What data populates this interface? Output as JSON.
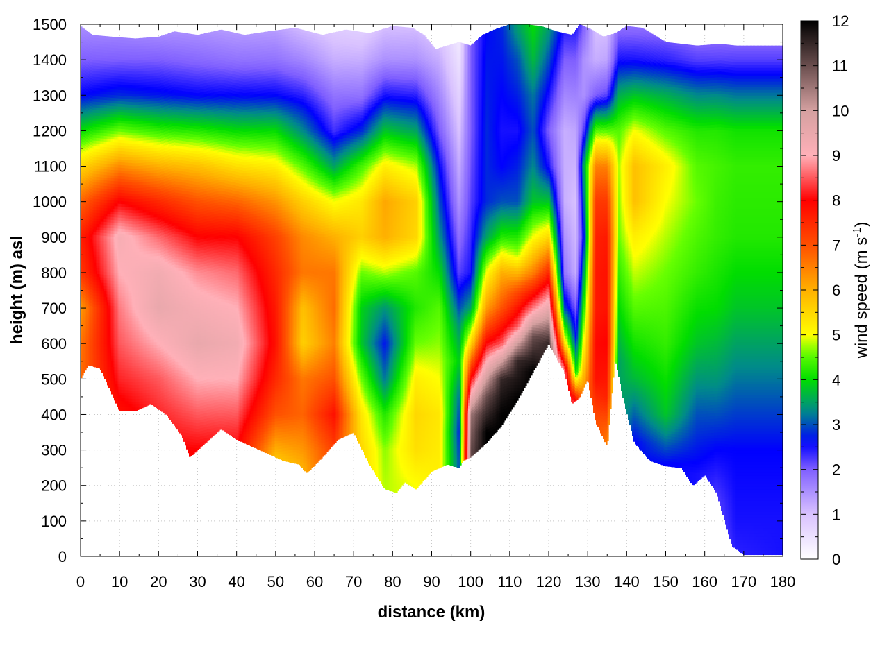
{
  "chart_data": {
    "type": "heatmap",
    "title": "",
    "xlabel": "distance (km)",
    "ylabel": "height (m) asl",
    "xlim": [
      0,
      180
    ],
    "ylim": [
      0,
      1500
    ],
    "x_ticks": [
      0,
      10,
      20,
      30,
      40,
      50,
      60,
      70,
      80,
      90,
      100,
      110,
      120,
      130,
      140,
      150,
      160,
      170,
      180
    ],
    "y_ticks": [
      0,
      100,
      200,
      300,
      400,
      500,
      600,
      700,
      800,
      900,
      1000,
      1100,
      1200,
      1300,
      1400,
      1500
    ],
    "grid": true,
    "colorbar": {
      "label_main": "wind speed (m s",
      "label_sup": "-1",
      "label_close": ")",
      "range": [
        0,
        12
      ],
      "ticks": [
        0,
        1,
        2,
        3,
        4,
        5,
        6,
        7,
        8,
        9,
        10,
        11,
        12
      ],
      "colormap": [
        [
          0,
          "#ffffff"
        ],
        [
          1,
          "#d9c2ff"
        ],
        [
          2,
          "#7f5fff"
        ],
        [
          2.6,
          "#0000ff"
        ],
        [
          3.3,
          "#008a8a"
        ],
        [
          4,
          "#00dd00"
        ],
        [
          4.6,
          "#66ff00"
        ],
        [
          5,
          "#ffff00"
        ],
        [
          6,
          "#ffb000"
        ],
        [
          7,
          "#ff5000"
        ],
        [
          8,
          "#ff0000"
        ],
        [
          9,
          "#ffb0b8"
        ],
        [
          10,
          "#d4a0a0"
        ],
        [
          11,
          "#6a4e4e"
        ],
        [
          12,
          "#000000"
        ]
      ]
    },
    "terrain_height": {
      "x": [
        0,
        2,
        5,
        10,
        14,
        18,
        22,
        26,
        28,
        32,
        36,
        40,
        44,
        48,
        52,
        56,
        58,
        62,
        66,
        70,
        74,
        78,
        81,
        83,
        86,
        90,
        94,
        97,
        98,
        100,
        104,
        108,
        112,
        116,
        120,
        124,
        126,
        128,
        130,
        132,
        135,
        137,
        139,
        142,
        146,
        150,
        154,
        157,
        160,
        163,
        167,
        170,
        175,
        180
      ],
      "y": [
        500,
        540,
        530,
        410,
        410,
        430,
        400,
        340,
        280,
        320,
        360,
        330,
        310,
        290,
        270,
        260,
        235,
        280,
        330,
        350,
        260,
        190,
        180,
        210,
        190,
        240,
        260,
        250,
        270,
        280,
        320,
        370,
        440,
        520,
        600,
        520,
        430,
        450,
        500,
        380,
        310,
        560,
        450,
        320,
        270,
        255,
        250,
        200,
        230,
        180,
        30,
        5,
        5,
        5
      ]
    },
    "top_height": {
      "x": [
        0,
        3,
        8,
        14,
        20,
        24,
        30,
        36,
        42,
        48,
        55,
        62,
        68,
        74,
        80,
        85,
        88,
        91,
        94,
        97,
        100,
        103,
        106,
        110,
        114,
        118,
        122,
        126,
        128,
        131,
        134,
        137,
        140,
        144,
        150,
        158,
        164,
        168,
        173,
        180
      ],
      "y": [
        1495,
        1470,
        1465,
        1460,
        1465,
        1480,
        1470,
        1485,
        1470,
        1480,
        1490,
        1470,
        1485,
        1475,
        1495,
        1490,
        1470,
        1430,
        1440,
        1450,
        1440,
        1470,
        1485,
        1500,
        1500,
        1495,
        1480,
        1470,
        1500,
        1485,
        1465,
        1475,
        1495,
        1490,
        1450,
        1440,
        1445,
        1440,
        1440,
        1440
      ]
    },
    "wind_profiles": [
      {
        "x": 0,
        "z": [
          0,
          200,
          400,
          600,
          700,
          800,
          900,
          1000,
          1100,
          1200,
          1300,
          1400,
          1500
        ],
        "v": [
          6,
          6.5,
          6.8,
          6.6,
          6.2,
          7.3,
          7.6,
          6.8,
          5.5,
          4,
          2.6,
          2,
          1.5
        ]
      },
      {
        "x": 10,
        "z": [
          0,
          300,
          400,
          500,
          600,
          700,
          800,
          900,
          1000,
          1100,
          1200,
          1300,
          1400,
          1500
        ],
        "v": [
          7.5,
          7.5,
          7.8,
          8.2,
          8.5,
          8.7,
          9,
          9.2,
          8,
          6.4,
          4.6,
          2.8,
          2,
          1.5
        ]
      },
      {
        "x": 20,
        "z": [
          0,
          300,
          400,
          500,
          600,
          700,
          800,
          900,
          1000,
          1100,
          1200,
          1300,
          1400,
          1500
        ],
        "v": [
          8,
          8,
          8.2,
          8.5,
          9,
          9.5,
          9.3,
          8.6,
          7.5,
          6,
          4.3,
          2.7,
          2,
          1.4
        ]
      },
      {
        "x": 30,
        "z": [
          0,
          300,
          400,
          500,
          600,
          700,
          800,
          900,
          1000,
          1100,
          1200,
          1300,
          1400,
          1500
        ],
        "v": [
          8,
          8,
          8.5,
          9,
          9.5,
          9.2,
          8.8,
          8,
          7,
          5.8,
          4.2,
          2.6,
          1.9,
          1.4
        ]
      },
      {
        "x": 40,
        "z": [
          0,
          300,
          400,
          500,
          600,
          700,
          800,
          900,
          1000,
          1100,
          1200,
          1300,
          1400,
          1500
        ],
        "v": [
          8,
          8,
          8.5,
          9,
          9.3,
          9,
          8.6,
          8,
          6.8,
          5.4,
          4,
          2.6,
          1.8,
          1.3
        ]
      },
      {
        "x": 50,
        "z": [
          0,
          250,
          300,
          400,
          500,
          600,
          700,
          800,
          900,
          1000,
          1100,
          1200,
          1300,
          1400,
          1500
        ],
        "v": [
          5.5,
          5.5,
          6,
          7,
          7.5,
          7.8,
          7.7,
          7.5,
          7.2,
          6.3,
          5.2,
          4,
          2.6,
          1.8,
          1.3
        ]
      },
      {
        "x": 57,
        "z": [
          0,
          250,
          400,
          500,
          600,
          700,
          800,
          900,
          1000,
          1100,
          1200,
          1300,
          1400,
          1500
        ],
        "v": [
          5.8,
          6,
          6.8,
          6.6,
          5.6,
          5.8,
          6.6,
          6.4,
          5.6,
          4.5,
          3.3,
          2.4,
          1.6,
          1
        ]
      },
      {
        "x": 65,
        "z": [
          0,
          300,
          400,
          500,
          600,
          700,
          800,
          900,
          1000,
          1100,
          1200,
          1300,
          1400,
          1500
        ],
        "v": [
          7.2,
          7.2,
          7.8,
          7,
          6.5,
          6.7,
          6.6,
          6,
          5,
          3.5,
          2.3,
          1.8,
          1.2,
          0.8
        ]
      },
      {
        "x": 72,
        "z": [
          0,
          300,
          400,
          500,
          600,
          700,
          800,
          900,
          1000,
          1100,
          1200,
          1300,
          1400,
          1500
        ],
        "v": [
          5.5,
          5.5,
          5.3,
          4.6,
          3.8,
          3.9,
          4.6,
          5.6,
          5.3,
          4.4,
          2.8,
          1.8,
          1.2,
          0.7
        ]
      },
      {
        "x": 78,
        "z": [
          0,
          200,
          300,
          400,
          500,
          600,
          700,
          800,
          900,
          1000,
          1100,
          1200,
          1300,
          1400,
          1500
        ],
        "v": [
          4.8,
          4.8,
          4.7,
          4.2,
          3.2,
          2.7,
          3.4,
          4.8,
          6,
          6.1,
          5.2,
          3.8,
          2.5,
          1.5,
          1
        ]
      },
      {
        "x": 86,
        "z": [
          0,
          200,
          300,
          400,
          500,
          600,
          700,
          800,
          900,
          1000,
          1100,
          1200,
          1300,
          1400,
          1500
        ],
        "v": [
          5,
          5,
          5.4,
          5.5,
          5.2,
          4.6,
          4.2,
          4.5,
          5.5,
          5.6,
          4.8,
          3.5,
          2.4,
          1.5,
          1
        ]
      },
      {
        "x": 92,
        "z": [
          0,
          250,
          400,
          500,
          600,
          700,
          800,
          900,
          1000,
          1100,
          1200,
          1300,
          1400,
          1500
        ],
        "v": [
          5.2,
          5.2,
          5.3,
          5,
          4.7,
          4.5,
          4,
          3.4,
          3,
          2.6,
          2,
          1.6,
          1.2,
          0.8
        ]
      },
      {
        "x": 97,
        "z": [
          0,
          270,
          350,
          450,
          550,
          650,
          800,
          1000,
          1200,
          1400,
          1500
        ],
        "v": [
          3,
          3,
          2.8,
          3.2,
          3.9,
          3.4,
          2.2,
          1.5,
          1,
          0.5,
          0.3
        ]
      },
      {
        "x": 100,
        "z": [
          0,
          300,
          400,
          500,
          600,
          700,
          800,
          1000,
          1200,
          1400,
          1500
        ],
        "v": [
          11,
          11,
          10.5,
          8,
          5.5,
          3.5,
          2.5,
          2.2,
          2,
          2,
          2
        ]
      },
      {
        "x": 104,
        "z": [
          0,
          350,
          450,
          550,
          650,
          700,
          800,
          900,
          1000,
          1200,
          1400,
          1500
        ],
        "v": [
          12,
          12,
          11,
          9,
          7,
          6.2,
          5,
          3.5,
          2.8,
          2.8,
          2.7,
          2.6
        ]
      },
      {
        "x": 108,
        "z": [
          0,
          400,
          500,
          600,
          700,
          800,
          900,
          1000,
          1100,
          1200,
          1300,
          1400,
          1500
        ],
        "v": [
          12,
          12,
          11.5,
          8.5,
          7,
          6,
          4.2,
          3,
          2.6,
          2.5,
          2.6,
          2.7,
          2.8
        ]
      },
      {
        "x": 112,
        "z": [
          0,
          440,
          550,
          650,
          750,
          850,
          1000,
          1200,
          1400,
          1500
        ],
        "v": [
          12,
          12,
          11.5,
          8.5,
          7,
          4.8,
          3,
          2.5,
          3,
          3.5
        ]
      },
      {
        "x": 116,
        "z": [
          0,
          520,
          620,
          700,
          800,
          900,
          1000,
          1100,
          1200,
          1300,
          1400,
          1500
        ],
        "v": [
          12,
          12,
          11,
          8.7,
          6.5,
          5,
          3.8,
          3.3,
          3,
          3.2,
          3.7,
          4
        ]
      },
      {
        "x": 120,
        "z": [
          0,
          600,
          700,
          800,
          900,
          1000,
          1100,
          1200,
          1400,
          1500
        ],
        "v": [
          11.5,
          11.5,
          9.5,
          7.5,
          5.5,
          3.8,
          2.5,
          2,
          3,
          3.5
        ]
      },
      {
        "x": 124,
        "z": [
          0,
          520,
          600,
          700,
          800,
          900,
          1000,
          1200,
          1400,
          1500
        ],
        "v": [
          9,
          9,
          5.5,
          3,
          1.8,
          1.5,
          1.2,
          1.2,
          2,
          2.5
        ]
      },
      {
        "x": 127,
        "z": [
          0,
          440,
          520,
          620,
          800,
          1000,
          1200,
          1400,
          1500
        ],
        "v": [
          7.5,
          8,
          4,
          2.6,
          1.2,
          1,
          1.3,
          2,
          2.5
        ]
      },
      {
        "x": 129,
        "z": [
          0,
          450,
          550,
          700,
          900,
          1100,
          1200,
          1300,
          1400,
          1500
        ],
        "v": [
          6.5,
          6.5,
          5.5,
          4.2,
          2.6,
          3.5,
          2.2,
          1.5,
          1.5,
          2
        ]
      },
      {
        "x": 132,
        "z": [
          0,
          380,
          500,
          600,
          700,
          800,
          900,
          1000,
          1100,
          1200,
          1300,
          1400,
          1500
        ],
        "v": [
          7,
          7,
          7.8,
          7.9,
          7.7,
          7.7,
          7.6,
          7.3,
          6.5,
          4.5,
          2,
          1.2,
          1
        ]
      },
      {
        "x": 135,
        "z": [
          0,
          320,
          450,
          600,
          700,
          800,
          900,
          1000,
          1100,
          1200,
          1300,
          1400,
          1500
        ],
        "v": [
          6.5,
          6.5,
          7.6,
          8,
          7.8,
          7.8,
          7.7,
          7.3,
          6.5,
          4.5,
          2.2,
          1.3,
          1
        ]
      },
      {
        "x": 138,
        "z": [
          0,
          550,
          700,
          900,
          1100,
          1200,
          1300,
          1400,
          1500
        ],
        "v": [
          3.5,
          3.5,
          4,
          4.6,
          4.8,
          4.5,
          3.6,
          2.5,
          1.8
        ]
      },
      {
        "x": 142,
        "z": [
          0,
          320,
          500,
          700,
          900,
          1000,
          1100,
          1200,
          1300,
          1400,
          1500
        ],
        "v": [
          2.6,
          2.6,
          3.7,
          4.5,
          5.2,
          5.8,
          5.8,
          5,
          3.8,
          2.5,
          1.8
        ]
      },
      {
        "x": 150,
        "z": [
          0,
          260,
          400,
          600,
          800,
          1000,
          1100,
          1200,
          1300,
          1400,
          1500
        ],
        "v": [
          2.6,
          2.6,
          3.8,
          4.3,
          4.6,
          5,
          5.2,
          4.5,
          3.6,
          2.4,
          1.8
        ]
      },
      {
        "x": 158,
        "z": [
          0,
          230,
          400,
          600,
          800,
          1000,
          1100,
          1200,
          1300,
          1400,
          1500
        ],
        "v": [
          2.5,
          2.5,
          3,
          3.8,
          4.3,
          4.6,
          4.5,
          4.2,
          3.3,
          2.2,
          1.7
        ]
      },
      {
        "x": 163,
        "z": [
          0,
          150,
          300,
          500,
          700,
          900,
          1100,
          1200,
          1300,
          1400,
          1500
        ],
        "v": [
          2,
          2.2,
          2.6,
          3.4,
          4,
          4.3,
          4.4,
          4.2,
          3.3,
          2.2,
          1.7
        ]
      },
      {
        "x": 168,
        "z": [
          0,
          100,
          300,
          500,
          700,
          900,
          1100,
          1200,
          1300,
          1400,
          1500
        ],
        "v": [
          2.4,
          2.5,
          2.6,
          3.2,
          3.8,
          4.2,
          4.3,
          4.1,
          3.2,
          2.2,
          1.7
        ]
      },
      {
        "x": 180,
        "z": [
          0,
          100,
          300,
          500,
          700,
          900,
          1100,
          1200,
          1300,
          1400,
          1500
        ],
        "v": [
          2.5,
          2.5,
          2.6,
          3.2,
          3.8,
          4.2,
          4.3,
          4.1,
          3.2,
          2.2,
          1.7
        ]
      }
    ]
  }
}
